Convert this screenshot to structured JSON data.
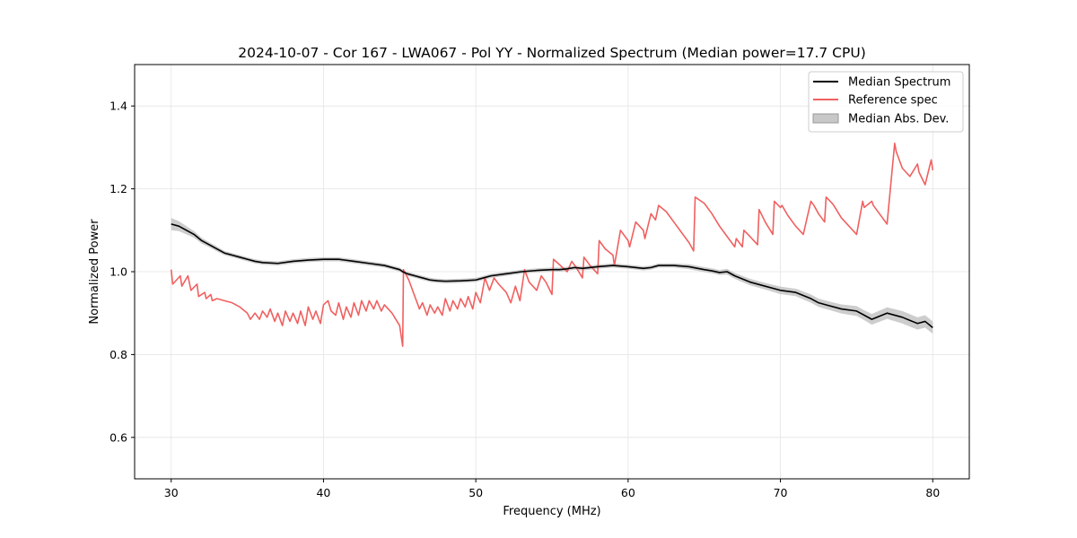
{
  "chart_data": {
    "type": "line",
    "title": "2024-10-07 - Cor 167 - LWA067 - Pol YY - Normalized Spectrum (Median power=17.7 CPU)",
    "xlabel": "Frequency (MHz)",
    "ylabel": "Normalized Power",
    "xlim": [
      27.6,
      82.4
    ],
    "ylim": [
      0.5,
      1.5
    ],
    "xticks": [
      30,
      40,
      50,
      60,
      70,
      80
    ],
    "yticks": [
      0.6,
      0.8,
      1.0,
      1.2,
      1.4
    ],
    "xtick_labels": [
      "30",
      "40",
      "50",
      "60",
      "70",
      "80"
    ],
    "ytick_labels": [
      "0.6",
      "0.8",
      "1.0",
      "1.2",
      "1.4"
    ],
    "grid": true,
    "legend_position": "top-right",
    "legend": [
      {
        "label": "Median Spectrum",
        "kind": "line",
        "color": "#000000"
      },
      {
        "label": "Reference spec",
        "kind": "line",
        "color": "#f06060"
      },
      {
        "label": "Median Abs. Dev.",
        "kind": "patch",
        "color": "#c8c8c8"
      }
    ],
    "series": [
      {
        "name": "Median Spectrum",
        "color": "#000000",
        "x": [
          30,
          30.5,
          31,
          31.5,
          32,
          32.5,
          33,
          33.5,
          34,
          34.5,
          35,
          35.5,
          36,
          37,
          38,
          39,
          40,
          41,
          42,
          43,
          44,
          45,
          45.2,
          45.5,
          46,
          46.5,
          47,
          47.5,
          48,
          49,
          50,
          50.5,
          51,
          52,
          53,
          54,
          55,
          55.5,
          56,
          56.5,
          57,
          58,
          59,
          60,
          61,
          61.5,
          62,
          63,
          64,
          65,
          65.5,
          66,
          66.5,
          67,
          68,
          69,
          70,
          71,
          72,
          72.5,
          73,
          74,
          75,
          75.5,
          76,
          77,
          78,
          79,
          79.5,
          80
        ],
        "y": [
          1.115,
          1.11,
          1.1,
          1.09,
          1.075,
          1.065,
          1.055,
          1.045,
          1.04,
          1.035,
          1.03,
          1.025,
          1.022,
          1.02,
          1.025,
          1.028,
          1.03,
          1.03,
          1.025,
          1.02,
          1.015,
          1.005,
          1.0,
          0.995,
          0.99,
          0.985,
          0.98,
          0.978,
          0.977,
          0.978,
          0.98,
          0.985,
          0.99,
          0.995,
          1.0,
          1.003,
          1.005,
          1.005,
          1.007,
          1.01,
          1.008,
          1.012,
          1.015,
          1.012,
          1.008,
          1.01,
          1.015,
          1.015,
          1.012,
          1.005,
          1.002,
          0.998,
          1.0,
          0.99,
          0.975,
          0.965,
          0.955,
          0.95,
          0.935,
          0.925,
          0.92,
          0.91,
          0.905,
          0.895,
          0.885,
          0.9,
          0.89,
          0.875,
          0.88,
          0.865
        ],
        "mad": [
          0.015,
          0.012,
          0.01,
          0.008,
          0.007,
          0.006,
          0.006,
          0.005,
          0.005,
          0.005,
          0.005,
          0.005,
          0.005,
          0.005,
          0.005,
          0.005,
          0.005,
          0.005,
          0.005,
          0.005,
          0.005,
          0.005,
          0.005,
          0.005,
          0.005,
          0.005,
          0.005,
          0.005,
          0.005,
          0.005,
          0.005,
          0.005,
          0.005,
          0.005,
          0.005,
          0.005,
          0.005,
          0.005,
          0.005,
          0.005,
          0.005,
          0.005,
          0.005,
          0.005,
          0.005,
          0.005,
          0.005,
          0.005,
          0.006,
          0.006,
          0.006,
          0.006,
          0.007,
          0.007,
          0.008,
          0.008,
          0.009,
          0.009,
          0.01,
          0.01,
          0.01,
          0.011,
          0.012,
          0.012,
          0.013,
          0.014,
          0.015,
          0.015,
          0.015,
          0.015
        ]
      },
      {
        "name": "Reference spec",
        "color": "#f06060",
        "x": [
          30,
          30.1,
          30.6,
          30.7,
          31.1,
          31.3,
          31.7,
          31.8,
          32.2,
          32.3,
          32.6,
          32.7,
          33,
          33.5,
          34,
          34.5,
          35,
          35.2,
          35.5,
          35.8,
          36,
          36.3,
          36.5,
          36.8,
          37,
          37.3,
          37.5,
          37.8,
          38,
          38.3,
          38.5,
          38.8,
          39,
          39.3,
          39.5,
          39.8,
          40,
          40.3,
          40.5,
          40.8,
          41,
          41.3,
          41.5,
          41.8,
          42,
          42.3,
          42.5,
          42.8,
          43,
          43.3,
          43.5,
          43.8,
          44,
          44.5,
          45,
          45.2,
          45.25,
          45.6,
          46,
          46.3,
          46.5,
          46.8,
          47,
          47.3,
          47.5,
          47.8,
          48,
          48.3,
          48.5,
          48.8,
          49,
          49.3,
          49.5,
          49.8,
          50,
          50.3,
          50.6,
          50.9,
          51.2,
          51.5,
          52,
          52.3,
          52.6,
          52.9,
          53.2,
          53.5,
          54,
          54.3,
          54.6,
          55,
          55.1,
          55.4,
          56,
          56.3,
          56.6,
          57,
          57.1,
          57.5,
          58,
          58.1,
          58.5,
          59,
          59.1,
          59.5,
          60,
          60.1,
          60.5,
          61,
          61.1,
          61.5,
          61.8,
          62,
          62.5,
          63,
          63.5,
          64,
          64.3,
          64.4,
          65,
          65.5,
          66,
          66.5,
          67,
          67.1,
          67.5,
          67.6,
          68,
          68.5,
          68.6,
          69,
          69.5,
          69.6,
          70,
          70.1,
          70.5,
          71,
          71.5,
          72,
          72.2,
          72.5,
          72.9,
          73,
          73.4,
          73.5,
          74,
          74.5,
          75,
          75.4,
          75.5,
          76,
          76.1,
          76.5,
          77,
          77.5,
          77.6,
          78,
          78.5,
          79,
          79.1,
          79.5,
          79.9,
          80
        ],
        "y": [
          1.005,
          0.97,
          0.99,
          0.965,
          0.99,
          0.955,
          0.97,
          0.94,
          0.95,
          0.935,
          0.945,
          0.93,
          0.935,
          0.93,
          0.925,
          0.915,
          0.9,
          0.885,
          0.9,
          0.885,
          0.905,
          0.89,
          0.91,
          0.88,
          0.9,
          0.87,
          0.905,
          0.88,
          0.9,
          0.875,
          0.905,
          0.87,
          0.915,
          0.885,
          0.905,
          0.875,
          0.92,
          0.93,
          0.905,
          0.895,
          0.925,
          0.885,
          0.915,
          0.89,
          0.925,
          0.895,
          0.93,
          0.905,
          0.93,
          0.91,
          0.93,
          0.905,
          0.92,
          0.9,
          0.87,
          0.82,
          1.005,
          0.98,
          0.94,
          0.91,
          0.925,
          0.895,
          0.92,
          0.9,
          0.915,
          0.895,
          0.935,
          0.905,
          0.93,
          0.91,
          0.935,
          0.915,
          0.94,
          0.91,
          0.95,
          0.925,
          0.985,
          0.955,
          0.985,
          0.97,
          0.95,
          0.925,
          0.965,
          0.93,
          1.005,
          0.975,
          0.955,
          0.99,
          0.975,
          0.945,
          1.03,
          1.02,
          1.0,
          1.025,
          1.01,
          0.985,
          1.035,
          1.015,
          0.995,
          1.075,
          1.055,
          1.04,
          1.015,
          1.1,
          1.075,
          1.06,
          1.12,
          1.1,
          1.08,
          1.14,
          1.125,
          1.16,
          1.145,
          1.12,
          1.095,
          1.07,
          1.05,
          1.18,
          1.165,
          1.14,
          1.11,
          1.085,
          1.06,
          1.08,
          1.06,
          1.1,
          1.085,
          1.065,
          1.15,
          1.12,
          1.09,
          1.17,
          1.155,
          1.16,
          1.135,
          1.11,
          1.09,
          1.17,
          1.16,
          1.14,
          1.12,
          1.18,
          1.165,
          1.16,
          1.13,
          1.11,
          1.09,
          1.17,
          1.155,
          1.17,
          1.16,
          1.14,
          1.115,
          1.31,
          1.29,
          1.25,
          1.23,
          1.26,
          1.24,
          1.21,
          1.27,
          1.245
        ]
      }
    ]
  }
}
